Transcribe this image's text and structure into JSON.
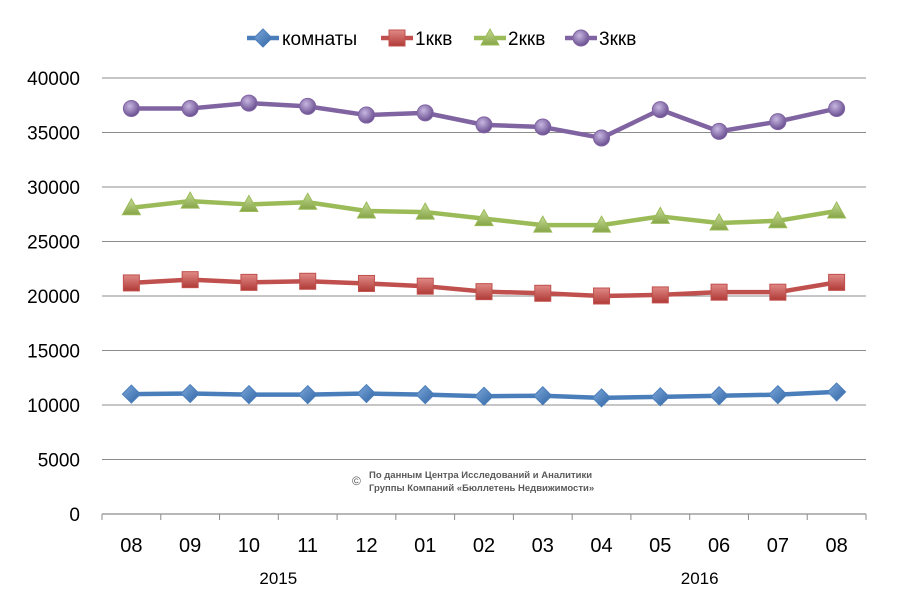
{
  "chart_data": {
    "type": "line",
    "categories": [
      "08",
      "09",
      "10",
      "11",
      "12",
      "01",
      "02",
      "03",
      "04",
      "05",
      "06",
      "07",
      "08"
    ],
    "year_labels": [
      "2015",
      "2016"
    ],
    "series": [
      {
        "name": "комнаты",
        "color": "#4a7ebb",
        "marker": "diamond",
        "values": [
          11000,
          11050,
          10950,
          10950,
          11050,
          10950,
          10800,
          10850,
          10650,
          10750,
          10850,
          10950,
          11200
        ]
      },
      {
        "name": "1ккв",
        "color": "#c0504d",
        "marker": "square",
        "values": [
          21200,
          21500,
          21250,
          21350,
          21150,
          20900,
          20400,
          20250,
          20000,
          20100,
          20350,
          20350,
          21250
        ]
      },
      {
        "name": "2ккв",
        "color": "#9bbb59",
        "marker": "triangle",
        "values": [
          28100,
          28700,
          28400,
          28600,
          27800,
          27700,
          27100,
          26500,
          26500,
          27300,
          26700,
          26900,
          27800
        ]
      },
      {
        "name": "3ккв",
        "color": "#8064a2",
        "marker": "circle",
        "values": [
          37200,
          37200,
          37700,
          37400,
          36600,
          36800,
          35700,
          35500,
          34500,
          37100,
          35100,
          36000,
          37200
        ]
      }
    ],
    "ylim": [
      0,
      40000
    ],
    "yticks": [
      0,
      5000,
      10000,
      15000,
      20000,
      25000,
      30000,
      35000,
      40000
    ],
    "grid": true,
    "legend": "top-center",
    "title": "",
    "xlabel": "",
    "ylabel": ""
  },
  "copyright_symbol": "©",
  "source_line1": "По данным Центра Исследований и Аналитики",
  "source_line2": "Группы Компаний «Бюллетень Недвижимости»"
}
